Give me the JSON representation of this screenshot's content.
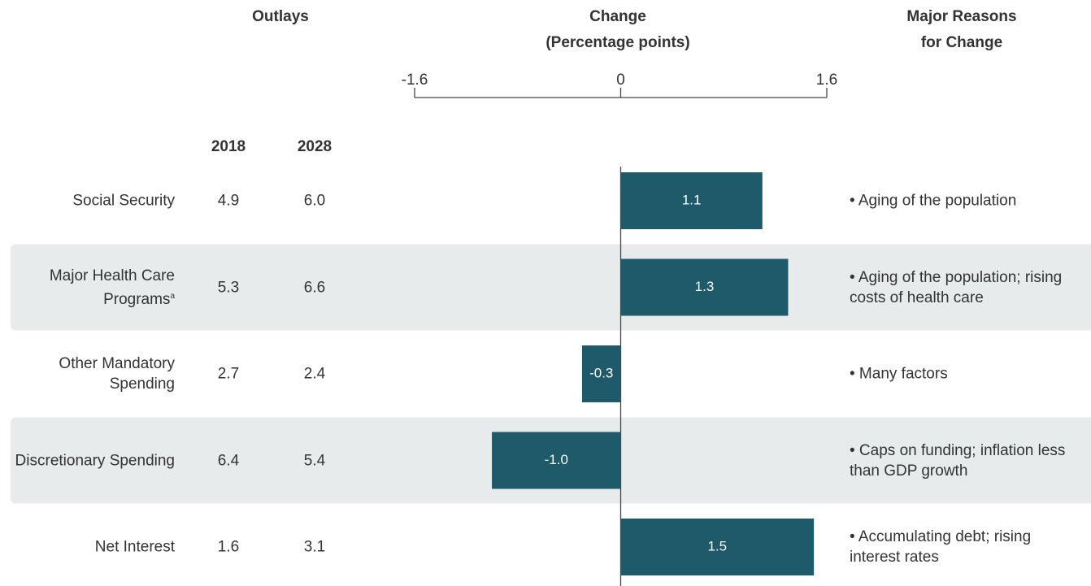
{
  "chart_data": {
    "type": "bar",
    "orientation": "horizontal",
    "headers": {
      "outlays": "Outlays",
      "change": [
        "Change",
        "(Percentage points)"
      ],
      "reasons": [
        "Major Reasons",
        "for Change"
      ],
      "years": [
        "2018",
        "2028"
      ]
    },
    "categories": [
      "Social Security",
      "Major Health Care Programs",
      "Other Mandatory Spending",
      "Discretionary Spending",
      "Net Interest"
    ],
    "category_superscripts": [
      null,
      "a",
      null,
      null,
      null
    ],
    "outlays_2018": [
      "4.9",
      "5.3",
      "2.7",
      "6.4",
      "1.6"
    ],
    "outlays_2028": [
      "6.0",
      "6.6",
      "2.4",
      "5.4",
      "3.1"
    ],
    "values": [
      1.1,
      1.3,
      -0.3,
      -1.0,
      1.5
    ],
    "value_labels": [
      "1.1",
      "1.3",
      "-0.3",
      "-1.0",
      "1.5"
    ],
    "reasons": [
      "• Aging of the population",
      "• Aging of the population; rising costs of health care",
      "• Many factors",
      "• Caps on funding; inflation less than GDP growth",
      "• Accumulating debt; rising interest rates"
    ],
    "xlim": [
      -1.6,
      1.6
    ],
    "xticks": [
      -1.6,
      0,
      1.6
    ],
    "color": "#1f5a6b",
    "band_color": "#e8ebeb"
  }
}
